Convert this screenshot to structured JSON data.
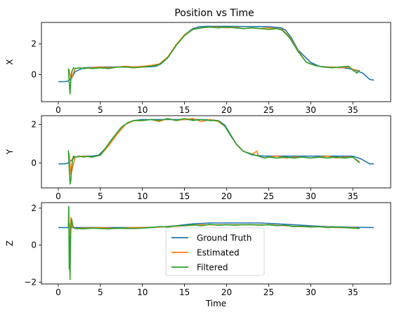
{
  "title": "Position vs Time",
  "chart_data": [
    {
      "type": "line",
      "ylabel": "X",
      "xlabel": "",
      "xlim": [
        -2.0,
        39.5
      ],
      "ylim": [
        -1.75,
        3.4
      ],
      "xticks": [
        "0",
        "5",
        "10",
        "15",
        "20",
        "25",
        "30",
        "35"
      ],
      "yticks": [
        {
          "v": 0,
          "label": "0"
        },
        {
          "v": 2,
          "label": "2"
        }
      ],
      "grid": false,
      "series": [
        {
          "name": "Ground Truth",
          "color": "#1f77b4",
          "x": [
            0,
            0.8,
            1.2,
            1.6,
            2.0,
            3,
            5,
            8,
            10,
            11,
            11.6,
            12.2,
            13,
            14,
            15,
            16,
            16.8,
            17.5,
            20,
            25,
            26.5,
            27,
            27.7,
            28.5,
            30,
            31,
            32,
            33,
            34,
            35,
            36.2,
            37,
            37.5
          ],
          "y": [
            -0.45,
            -0.45,
            -0.4,
            -0.2,
            0.2,
            0.45,
            0.5,
            0.5,
            0.5,
            0.52,
            0.55,
            0.7,
            1.1,
            1.9,
            2.6,
            3.0,
            3.12,
            3.15,
            3.15,
            3.12,
            3.05,
            2.9,
            2.4,
            1.6,
            0.8,
            0.55,
            0.5,
            0.48,
            0.45,
            0.35,
            0.1,
            -0.3,
            -0.35
          ]
        },
        {
          "name": "Estimated",
          "color": "#ff7f0e",
          "x": [
            1.3,
            1.5,
            2,
            2.5,
            3,
            4,
            5,
            6,
            7,
            8,
            9,
            10,
            11,
            12,
            13,
            14,
            15,
            16,
            17,
            18,
            19,
            20,
            21,
            22,
            23,
            24,
            25,
            26,
            26.6,
            27.5,
            28.5,
            29.5,
            30.5,
            31.5,
            32.5,
            33.5,
            34.5,
            35,
            35.5,
            35.8
          ],
          "y": [
            0.35,
            -0.3,
            0.4,
            0.45,
            0.4,
            0.45,
            0.5,
            0.45,
            0.5,
            0.55,
            0.5,
            0.55,
            0.6,
            0.7,
            1.15,
            1.95,
            2.6,
            2.95,
            3.05,
            3.1,
            3.1,
            3.05,
            3.1,
            3.0,
            3.05,
            3.0,
            3.05,
            3.0,
            2.95,
            2.45,
            1.55,
            0.8,
            0.6,
            0.5,
            0.5,
            0.45,
            0.5,
            0.35,
            0.3,
            0.2
          ]
        },
        {
          "name": "Filtered",
          "color": "#2ca02c",
          "x": [
            1.2,
            1.3,
            1.4,
            1.5,
            1.6,
            1.7,
            1.8,
            2.0,
            2.5,
            3,
            3.5,
            4,
            5,
            6,
            7,
            8,
            9,
            10,
            11,
            12,
            13,
            14,
            15,
            16,
            17,
            18,
            19,
            20,
            21,
            22,
            23,
            24,
            25,
            26,
            26.6,
            27.5,
            28.5,
            29.5,
            30.5,
            31.5,
            32.5,
            33.5,
            34.5,
            35,
            35.5,
            35.8
          ],
          "y": [
            0.4,
            -0.5,
            -1.25,
            -0.3,
            0.2,
            0.3,
            0.45,
            0.4,
            0.45,
            0.4,
            0.45,
            0.4,
            0.45,
            0.4,
            0.5,
            0.5,
            0.45,
            0.5,
            0.55,
            0.65,
            1.1,
            1.9,
            2.55,
            2.95,
            3.05,
            3.1,
            3.05,
            3.1,
            3.05,
            3.0,
            3.05,
            3.0,
            2.95,
            3.0,
            2.9,
            2.4,
            1.5,
            0.8,
            0.6,
            0.5,
            0.45,
            0.5,
            0.55,
            0.3,
            0.1,
            0.3
          ]
        }
      ]
    },
    {
      "type": "line",
      "ylabel": "Y",
      "xlabel": "",
      "xlim": [
        -2.0,
        39.5
      ],
      "ylim": [
        -1.3,
        2.45
      ],
      "xticks": [
        "0",
        "5",
        "10",
        "15",
        "20",
        "25",
        "30",
        "35"
      ],
      "yticks": [
        {
          "v": 0,
          "label": "0"
        },
        {
          "v": 2,
          "label": "2"
        }
      ],
      "grid": false,
      "series": [
        {
          "name": "Ground Truth",
          "color": "#1f77b4",
          "x": [
            0,
            0.8,
            1.2,
            1.6,
            2.0,
            3,
            4,
            4.8,
            5.5,
            6.5,
            7.5,
            8.3,
            9,
            10,
            12,
            15,
            17,
            18.5,
            19.2,
            19.8,
            20.5,
            21.2,
            22,
            23,
            23.8,
            24.5,
            26,
            30,
            35,
            36,
            37,
            37.5
          ],
          "y": [
            -0.05,
            -0.05,
            0.0,
            0.15,
            0.3,
            0.35,
            0.35,
            0.4,
            0.7,
            1.3,
            1.85,
            2.1,
            2.2,
            2.25,
            2.25,
            2.25,
            2.25,
            2.22,
            2.15,
            1.95,
            1.45,
            0.95,
            0.6,
            0.42,
            0.38,
            0.35,
            0.35,
            0.35,
            0.35,
            0.2,
            -0.05,
            -0.05
          ]
        },
        {
          "name": "Estimated",
          "color": "#ff7f0e",
          "x": [
            1.3,
            1.5,
            2,
            3,
            4,
            5,
            6,
            7,
            8,
            9,
            10,
            11,
            12,
            13,
            14,
            15,
            16,
            17,
            18,
            19,
            19.8,
            20.5,
            21.2,
            22,
            23,
            23.6,
            23.8,
            24.5,
            25,
            26,
            27,
            28,
            29,
            30,
            31,
            32,
            33,
            34,
            35,
            35.8
          ],
          "y": [
            0.5,
            -0.6,
            0.3,
            0.35,
            0.3,
            0.4,
            0.9,
            1.5,
            2.0,
            2.2,
            2.2,
            2.25,
            2.15,
            2.3,
            2.2,
            2.25,
            2.3,
            2.15,
            2.25,
            2.15,
            1.9,
            1.4,
            0.95,
            0.6,
            0.45,
            0.6,
            0.35,
            0.25,
            0.3,
            0.35,
            0.25,
            0.3,
            0.3,
            0.25,
            0.3,
            0.35,
            0.25,
            0.3,
            0.3,
            0.05
          ]
        },
        {
          "name": "Filtered",
          "color": "#2ca02c",
          "x": [
            1.2,
            1.3,
            1.4,
            1.5,
            1.6,
            1.7,
            1.8,
            2.0,
            2.5,
            3,
            3.5,
            4,
            5,
            5.5,
            6.5,
            7.5,
            8.3,
            9,
            10,
            11,
            12,
            13,
            14,
            15,
            16,
            17,
            18,
            19,
            19.8,
            20.5,
            21.2,
            22,
            23,
            23.8,
            24.5,
            25,
            26,
            27,
            28,
            29,
            30,
            31,
            32,
            33,
            34,
            35,
            35.8
          ],
          "y": [
            0.65,
            -0.3,
            -1.1,
            -0.9,
            -0.2,
            0.2,
            0.35,
            0.3,
            0.35,
            0.3,
            0.35,
            0.3,
            0.4,
            0.7,
            1.3,
            1.85,
            2.1,
            2.2,
            2.2,
            2.25,
            2.2,
            2.3,
            2.2,
            2.3,
            2.2,
            2.25,
            2.2,
            2.2,
            1.9,
            1.4,
            0.95,
            0.6,
            0.45,
            0.35,
            0.25,
            0.3,
            0.25,
            0.3,
            0.25,
            0.3,
            0.25,
            0.3,
            0.25,
            0.3,
            0.25,
            0.3,
            0.0
          ]
        }
      ]
    },
    {
      "type": "line",
      "ylabel": "Z",
      "xlabel": "Time",
      "xlim": [
        -2.0,
        39.5
      ],
      "ylim": [
        -2.1,
        2.3
      ],
      "xticks": [
        "0",
        "5",
        "10",
        "15",
        "20",
        "25",
        "30",
        "35"
      ],
      "yticks": [
        {
          "v": -2,
          "label": "−2"
        },
        {
          "v": 0,
          "label": "0"
        },
        {
          "v": 2,
          "label": "2"
        }
      ],
      "grid": false,
      "legend": {
        "position": "lower center",
        "entries": [
          "Ground Truth",
          "Estimated",
          "Filtered"
        ]
      },
      "series": [
        {
          "name": "Ground Truth",
          "color": "#1f77b4",
          "x": [
            0,
            5,
            10,
            12,
            14,
            16,
            18,
            20,
            24,
            26,
            28,
            30,
            32,
            35,
            37.5
          ],
          "y": [
            0.95,
            0.95,
            0.95,
            0.98,
            1.05,
            1.15,
            1.2,
            1.2,
            1.2,
            1.15,
            1.1,
            1.05,
            1.0,
            0.97,
            0.95
          ]
        },
        {
          "name": "Estimated",
          "color": "#ff7f0e",
          "x": [
            1.3,
            1.4,
            1.5,
            1.6,
            1.8,
            2,
            3,
            5,
            7,
            9,
            11,
            13,
            15,
            17,
            19,
            21,
            23,
            25,
            27,
            29,
            31,
            33,
            35,
            35.8
          ],
          "y": [
            1.2,
            0.5,
            1.5,
            1.0,
            0.95,
            0.9,
            0.92,
            0.95,
            0.9,
            0.95,
            0.95,
            1.0,
            1.05,
            1.1,
            1.1,
            1.1,
            1.1,
            1.1,
            1.05,
            1.0,
            1.0,
            0.95,
            0.95,
            0.9
          ]
        },
        {
          "name": "Filtered",
          "color": "#2ca02c",
          "x": [
            1.2,
            1.25,
            1.3,
            1.35,
            1.4,
            1.45,
            1.5,
            1.6,
            1.7,
            1.8,
            2.0,
            3,
            4,
            5,
            6,
            7,
            8,
            9,
            10,
            11,
            12,
            13,
            14,
            15,
            16,
            17,
            18,
            19,
            20,
            21,
            22,
            23,
            24,
            25,
            26,
            27,
            28,
            29,
            30,
            31,
            32,
            33,
            34,
            35,
            35.8
          ],
          "y": [
            1.0,
            2.1,
            -1.3,
            0.5,
            -1.85,
            0.0,
            1.0,
            1.4,
            1.1,
            0.95,
            0.9,
            0.88,
            0.92,
            0.9,
            0.88,
            0.92,
            0.9,
            0.9,
            0.92,
            0.95,
            1.0,
            0.98,
            1.05,
            1.05,
            1.1,
            1.05,
            1.12,
            1.08,
            1.1,
            1.08,
            1.1,
            1.1,
            1.08,
            1.1,
            1.05,
            1.08,
            1.0,
            1.02,
            0.98,
            1.0,
            0.95,
            0.98,
            0.95,
            0.92,
            0.9
          ]
        }
      ]
    }
  ]
}
